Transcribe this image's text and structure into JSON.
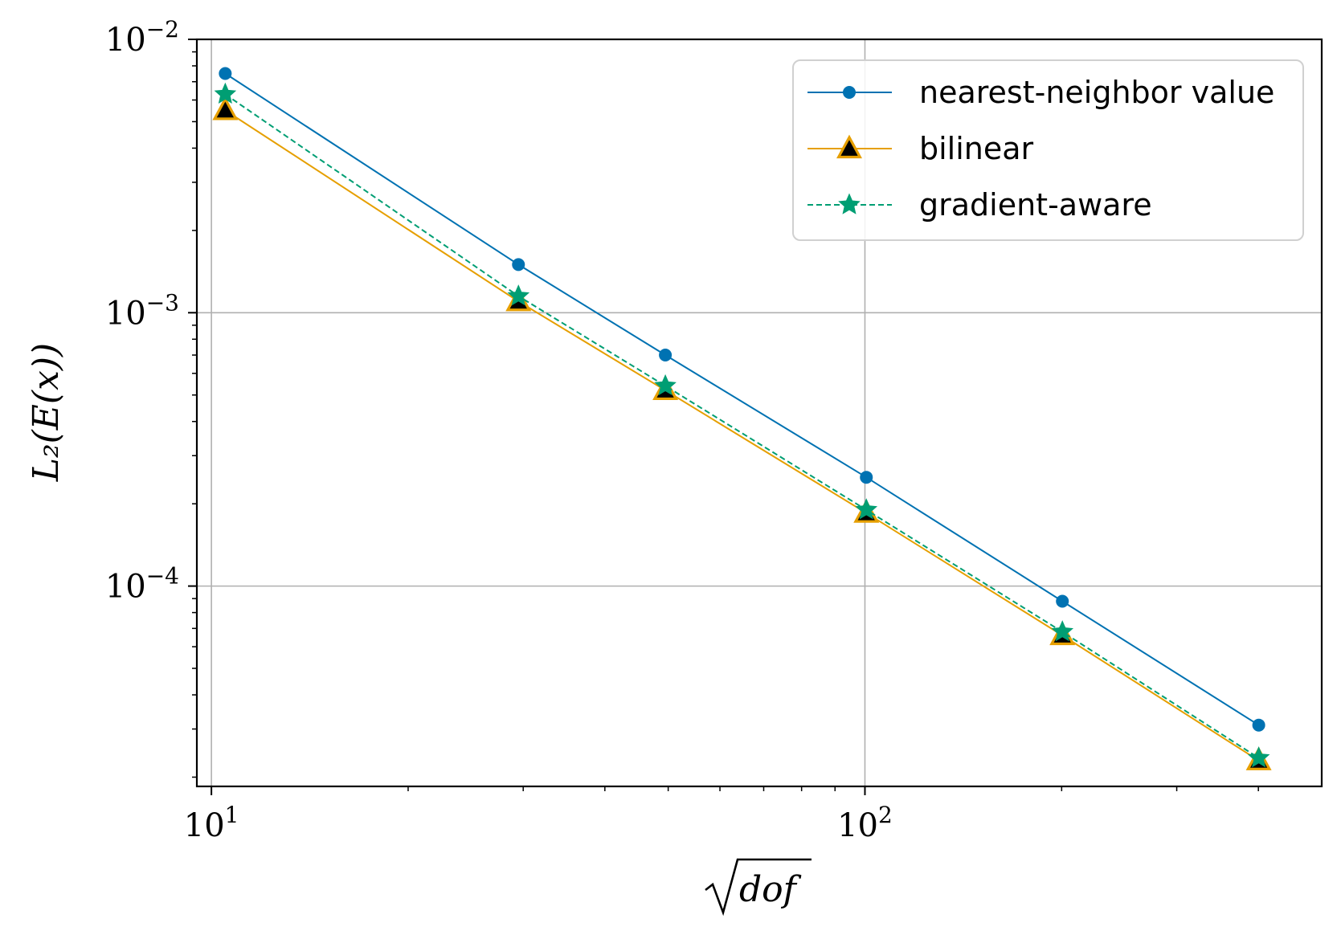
{
  "chart_data": {
    "type": "line",
    "title": "",
    "xlabel": "√dof",
    "ylabel": "L₂(E(x))",
    "xscale": "log",
    "yscale": "log",
    "xlim": [
      9.5,
      500
    ],
    "ylim": [
      1.85e-05,
      0.01
    ],
    "grid": true,
    "legend_position": "top-right",
    "x_ticks": [
      {
        "base": "10",
        "exp": "1",
        "value": 10
      },
      {
        "base": "10",
        "exp": "2",
        "value": 100
      }
    ],
    "y_ticks": [
      {
        "base": "10",
        "exp": "−2",
        "value": 0.01
      },
      {
        "base": "10",
        "exp": "−3",
        "value": 0.001
      },
      {
        "base": "10",
        "exp": "−4",
        "value": 0.0001
      }
    ],
    "series": [
      {
        "name": "nearest-neighbor value",
        "color": "#0072b2",
        "marker": "circle",
        "line_style": "solid",
        "x": [
          10.5,
          29.5,
          49.5,
          100.5,
          200.5,
          400.5
        ],
        "y": [
          0.0075,
          0.0015,
          0.0007,
          0.00025,
          8.8e-05,
          3.1e-05
        ]
      },
      {
        "name": "bilinear",
        "color": "#e69f00",
        "marker": "triangle",
        "line_style": "solid",
        "x": [
          10.5,
          29.5,
          49.5,
          100.5,
          200.5,
          400.5
        ],
        "y": [
          0.0055,
          0.0011,
          0.00052,
          0.000185,
          6.6e-05,
          2.3e-05
        ]
      },
      {
        "name": "gradient-aware",
        "color": "#009e73",
        "marker": "star",
        "line_style": "dashed",
        "x": [
          10.5,
          29.5,
          49.5,
          100.5,
          200.5,
          400.5
        ],
        "y": [
          0.0063,
          0.00115,
          0.00054,
          0.00019,
          6.8e-05,
          2.35e-05
        ]
      }
    ]
  }
}
